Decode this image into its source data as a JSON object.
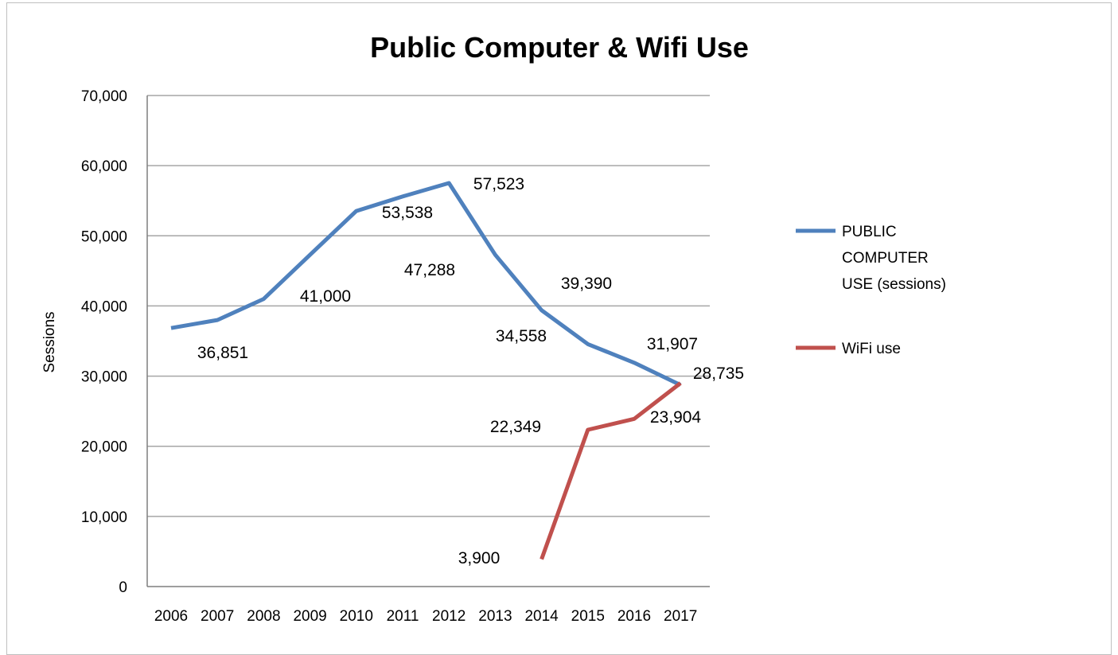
{
  "chart_data": {
    "type": "line",
    "title": "Public Computer & Wifi Use",
    "xlabel": "",
    "ylabel": "Sessions",
    "ylim": [
      0,
      70000
    ],
    "y_ticks": [
      "0",
      "10,000",
      "20,000",
      "30,000",
      "40,000",
      "50,000",
      "60,000",
      "70,000"
    ],
    "y_tick_values": [
      0,
      10000,
      20000,
      30000,
      40000,
      50000,
      60000,
      70000
    ],
    "categories": [
      "2006",
      "2007",
      "2008",
      "2009",
      "2010",
      "2011",
      "2012",
      "2013",
      "2014",
      "2015",
      "2016",
      "2017"
    ],
    "grid": true,
    "legend_position": "right",
    "series": [
      {
        "name": "PUBLIC COMPUTER USE (sessions)",
        "legend_lines": [
          "PUBLIC",
          "COMPUTER",
          "USE (sessions)"
        ],
        "color": "#4f81bd",
        "values": [
          36851,
          38000,
          41000,
          47288,
          53538,
          55600,
          57523,
          47288,
          39390,
          34558,
          31907,
          28735
        ],
        "data_labels": [
          "36,851",
          "41,000",
          "53,538",
          "47,288",
          "57,523",
          "39,390",
          "34,558",
          "31,907",
          "28,735"
        ]
      },
      {
        "name": "WiFi use",
        "legend_lines": [
          "WiFi use"
        ],
        "color": "#c0504d",
        "values": [
          null,
          null,
          null,
          null,
          null,
          null,
          null,
          null,
          3900,
          22349,
          23904,
          29000
        ],
        "data_labels": [
          "3,900",
          "22,349",
          "23,904"
        ]
      }
    ]
  }
}
